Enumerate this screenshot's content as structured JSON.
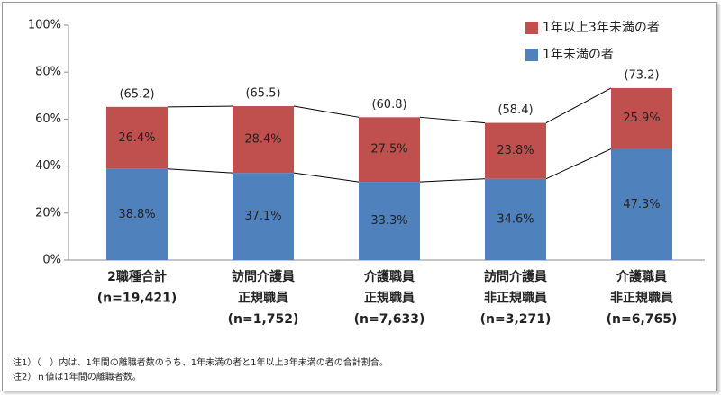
{
  "chart_data": {
    "type": "stacked_bar",
    "categories": [
      [
        "2職種合計",
        "(n=19,421)"
      ],
      [
        "訪問介護員",
        "正規職員",
        "(n=1,752)"
      ],
      [
        "介護職員",
        "正規職員",
        "(n=7,633)"
      ],
      [
        "訪問介護員",
        "非正規職員",
        "(n=3,271)"
      ],
      [
        "介護職員",
        "非正規職員",
        "(n=6,765)"
      ]
    ],
    "series": [
      {
        "name": "1年未満の者",
        "color": "#4f81bd",
        "values": [
          38.8,
          37.1,
          33.3,
          34.6,
          47.3
        ],
        "value_labels": [
          "38.8%",
          "37.1%",
          "33.3%",
          "34.6%",
          "47.3%"
        ]
      },
      {
        "name": "1年以上3年未満の者",
        "color": "#c0504d",
        "values": [
          26.4,
          28.4,
          27.5,
          23.8,
          25.9
        ],
        "value_labels": [
          "26.4%",
          "28.4%",
          "27.5%",
          "23.8%",
          "25.9%"
        ]
      }
    ],
    "totals": {
      "values": [
        65.2,
        65.5,
        60.8,
        58.4,
        73.2
      ],
      "value_labels": [
        "(65.2)",
        "(65.5)",
        "(60.8)",
        "(58.4)",
        "(73.2)"
      ]
    },
    "ylim": [
      0,
      100
    ],
    "yticks": [
      {
        "value": 0,
        "label": "0%"
      },
      {
        "value": 20,
        "label": "20%"
      },
      {
        "value": 40,
        "label": "40%"
      },
      {
        "value": 60,
        "label": "60%"
      },
      {
        "value": 80,
        "label": "80%"
      },
      {
        "value": 100,
        "label": "100%"
      }
    ],
    "grid": false,
    "legend": "upper right",
    "notes": [
      "注1）（　）内は、1年間の離職者数のうち、1年未満の者と1年以上3年未満の者の合計割合。",
      "注2）ｎ値は1年間の離職者数。"
    ]
  }
}
